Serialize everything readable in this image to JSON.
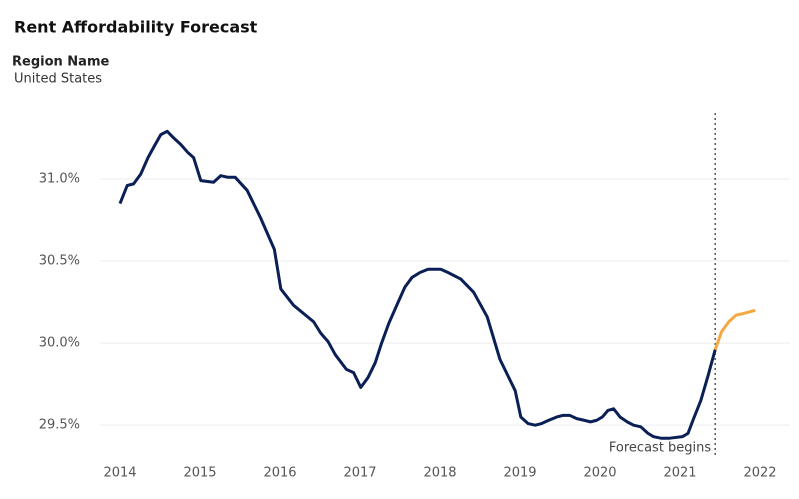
{
  "chart_data": {
    "type": "line",
    "title": "Rent Affordability Forecast",
    "filter_label": "Region Name",
    "filter_value": "United States",
    "annotation": "Forecast begins",
    "forecast_start": 2021.44,
    "xlim": [
      2013.75,
      2022.375
    ],
    "xticks": [
      2014,
      2015,
      2016,
      2017,
      2018,
      2019,
      2020,
      2021,
      2022
    ],
    "ylim": [
      29.3,
      31.42
    ],
    "yticks": [
      {
        "value": 29.5,
        "label": "29.5%"
      },
      {
        "value": 30,
        "label": "30.0%"
      },
      {
        "value": 30.5,
        "label": "30.5%"
      },
      {
        "value": 31,
        "label": "31.0%"
      }
    ],
    "grid": true,
    "series": [
      {
        "color": "#0a1f55",
        "x": [
          2014.0,
          2014.09,
          2014.17,
          2014.26,
          2014.35,
          2014.44,
          2014.51,
          2014.59,
          2014.67,
          2014.76,
          2014.85,
          2014.92,
          2015.01,
          2015.17,
          2015.26,
          2015.35,
          2015.44,
          2015.59,
          2015.76,
          2015.93,
          2016.01,
          2016.17,
          2016.42,
          2016.51,
          2016.6,
          2016.69,
          2016.83,
          2016.92,
          2017.01,
          2017.1,
          2017.19,
          2017.27,
          2017.36,
          2017.45,
          2017.56,
          2017.65,
          2017.75,
          2017.85,
          2018.01,
          2018.1,
          2018.26,
          2018.42,
          2018.59,
          2018.75,
          2018.94,
          2019.01,
          2019.1,
          2019.19,
          2019.27,
          2019.36,
          2019.46,
          2019.54,
          2019.62,
          2019.71,
          2019.8,
          2019.88,
          2019.96,
          2020.03,
          2020.1,
          2020.17,
          2020.25,
          2020.34,
          2020.42,
          2020.51,
          2020.6,
          2020.67,
          2020.77,
          2020.86,
          2021.03,
          2021.1,
          2021.17,
          2021.26,
          2021.35,
          2021.44
        ],
        "values": [
          30.85,
          30.96,
          30.97,
          31.03,
          31.13,
          31.21,
          31.27,
          31.29,
          31.25,
          31.21,
          31.16,
          31.13,
          30.99,
          30.98,
          31.02,
          31.01,
          31.01,
          30.93,
          30.76,
          30.57,
          30.33,
          30.23,
          30.13,
          30.06,
          30.01,
          29.93,
          29.84,
          29.82,
          29.73,
          29.79,
          29.88,
          30.0,
          30.12,
          30.22,
          30.34,
          30.4,
          30.43,
          30.45,
          30.45,
          30.43,
          30.39,
          30.31,
          30.16,
          29.9,
          29.71,
          29.55,
          29.51,
          29.5,
          29.51,
          29.53,
          29.55,
          29.56,
          29.56,
          29.54,
          29.53,
          29.52,
          29.53,
          29.55,
          29.59,
          29.6,
          29.55,
          29.52,
          29.5,
          29.49,
          29.45,
          29.43,
          29.42,
          29.42,
          29.43,
          29.45,
          29.54,
          29.65,
          29.8,
          29.96
        ]
      },
      {
        "color": "#f5a742",
        "x": [
          2021.44,
          2021.52,
          2021.61,
          2021.7,
          2021.79,
          2021.94
        ],
        "values": [
          29.96,
          30.07,
          30.13,
          30.17,
          30.18,
          30.2
        ]
      }
    ]
  }
}
